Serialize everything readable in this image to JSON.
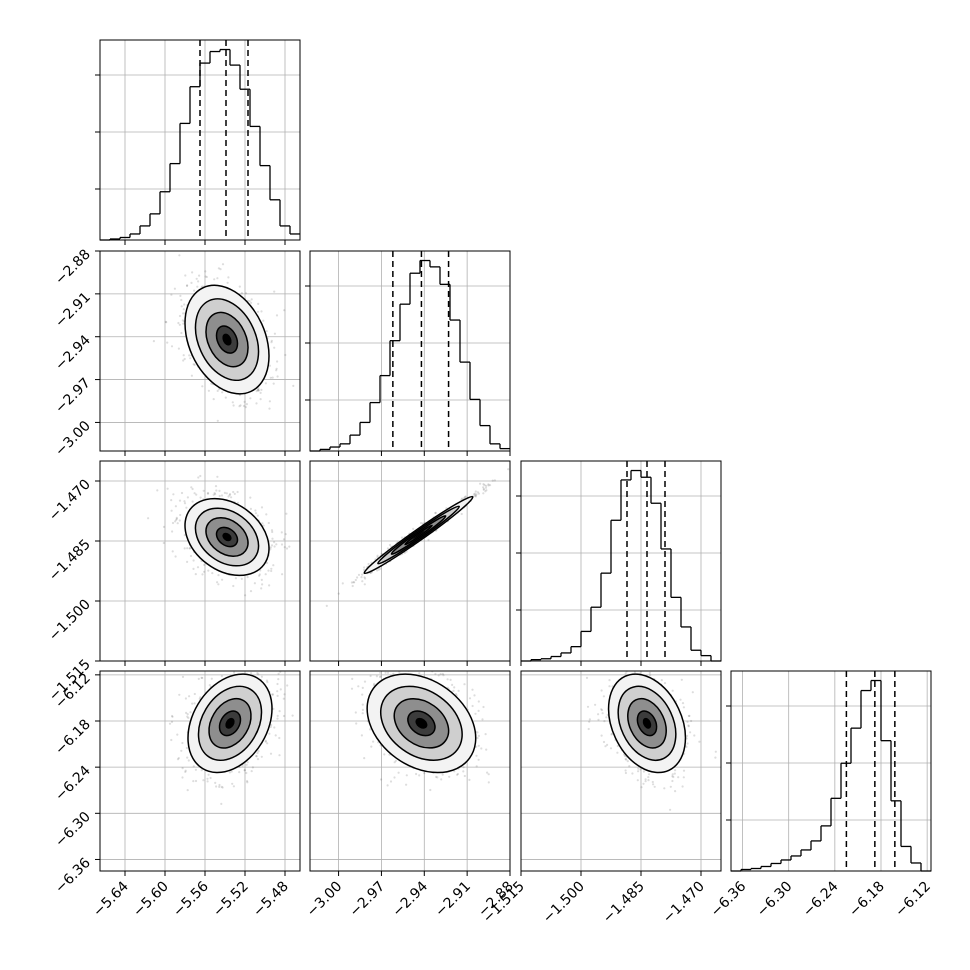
{
  "chart_data": {
    "type": "corner",
    "parameters": [
      {
        "id": "p0",
        "range": [
          -5.665,
          -5.465
        ],
        "ticks": [
          -5.64,
          -5.6,
          -5.56,
          -5.52,
          -5.48
        ],
        "tick_labels": [
          "−5.64",
          "−5.60",
          "−5.56",
          "−5.52",
          "−5.48"
        ],
        "quantiles": [
          -5.565,
          -5.539,
          -5.517
        ],
        "mean": -5.54,
        "sd": 0.021
      },
      {
        "id": "p1",
        "range": [
          -3.02,
          -2.88
        ],
        "ticks": [
          -3.0,
          -2.97,
          -2.94,
          -2.91,
          -2.88
        ],
        "tick_labels": [
          "−3.00",
          "−2.97",
          "−2.94",
          "−2.91",
          "−2.88"
        ],
        "quantiles": [
          -2.962,
          -2.942,
          -2.923
        ],
        "mean": -2.942,
        "sd": 0.019
      },
      {
        "id": "p2",
        "range": [
          -1.515,
          -1.465
        ],
        "ticks": [
          -1.515,
          -1.5,
          -1.485,
          -1.47
        ],
        "tick_labels": [
          "−1.515",
          "−1.500",
          "−1.485",
          "−1.470"
        ],
        "quantiles": [
          -1.4885,
          -1.4835,
          -1.479
        ],
        "mean": -1.4835,
        "sd": 0.0048
      },
      {
        "id": "p3",
        "range": [
          -6.375,
          -6.115
        ],
        "ticks": [
          -6.36,
          -6.3,
          -6.24,
          -6.18,
          -6.12
        ],
        "tick_labels": [
          "−6.36",
          "−6.30",
          "−6.24",
          "−6.18",
          "−6.12"
        ],
        "quantiles": [
          -6.225,
          -6.188,
          -6.162
        ],
        "mean": -6.185,
        "sd": 0.032
      }
    ],
    "histograms": [
      {
        "param": 0,
        "bin_edges": [
          -5.665,
          -5.655,
          -5.645,
          -5.635,
          -5.625,
          -5.615,
          -5.605,
          -5.595,
          -5.585,
          -5.575,
          -5.565,
          -5.555,
          -5.545,
          -5.535,
          -5.525,
          -5.515,
          -5.505,
          -5.495,
          -5.485,
          -5.475,
          -5.465
        ],
        "counts": [
          0,
          2,
          5,
          12,
          28,
          52,
          96,
          152,
          232,
          305,
          352,
          375,
          379,
          348,
          300,
          226,
          148,
          80,
          28,
          12
        ]
      },
      {
        "param": 1,
        "bin_edges": [
          -3.02,
          -3.013,
          -3.006,
          -2.999,
          -2.992,
          -2.985,
          -2.978,
          -2.971,
          -2.964,
          -2.957,
          -2.95,
          -2.943,
          -2.936,
          -2.929,
          -2.922,
          -2.915,
          -2.908,
          -2.901,
          -2.894,
          -2.887,
          -2.88
        ],
        "counts": [
          0,
          4,
          10,
          18,
          40,
          72,
          122,
          190,
          278,
          370,
          448,
          480,
          464,
          420,
          330,
          224,
          130,
          64,
          18,
          6
        ]
      },
      {
        "param": 2,
        "bin_edges": [
          -1.515,
          -1.5125,
          -1.51,
          -1.5075,
          -1.505,
          -1.5025,
          -1.5,
          -1.4975,
          -1.495,
          -1.4925,
          -1.49,
          -1.4875,
          -1.485,
          -1.4825,
          -1.48,
          -1.4775,
          -1.475,
          -1.4725,
          -1.47,
          -1.4675,
          -1.465
        ],
        "counts": [
          0,
          3,
          5,
          10,
          18,
          32,
          66,
          120,
          196,
          314,
          404,
          425,
          410,
          352,
          250,
          142,
          76,
          24,
          12,
          0
        ]
      },
      {
        "param": 3,
        "bin_edges": [
          -6.375,
          -6.362,
          -6.349,
          -6.336,
          -6.323,
          -6.31,
          -6.297,
          -6.284,
          -6.271,
          -6.258,
          -6.245,
          -6.232,
          -6.219,
          -6.206,
          -6.193,
          -6.18,
          -6.167,
          -6.154,
          -6.141,
          -6.128,
          -6.115
        ],
        "counts": [
          0,
          6,
          10,
          18,
          30,
          44,
          60,
          84,
          120,
          180,
          290,
          430,
          570,
          720,
          760,
          520,
          280,
          98,
          32,
          0
        ]
      }
    ],
    "pairs": [
      {
        "x": 0,
        "y": 1,
        "center": [
          -5.538,
          -2.942
        ],
        "sd": [
          0.021,
          0.019
        ],
        "rho": -0.3
      },
      {
        "x": 0,
        "y": 2,
        "center": [
          -5.538,
          -1.484
        ],
        "sd": [
          0.021,
          0.0048
        ],
        "rho": -0.3
      },
      {
        "x": 1,
        "y": 2,
        "center": [
          -2.944,
          -1.4835
        ],
        "sd": [
          0.019,
          0.0048
        ],
        "rho": 0.985
      },
      {
        "x": 0,
        "y": 3,
        "center": [
          -5.535,
          -6.183
        ],
        "sd": [
          0.021,
          0.032
        ],
        "rho": 0.3
      },
      {
        "x": 1,
        "y": 3,
        "center": [
          -2.942,
          -6.183
        ],
        "sd": [
          0.019,
          0.032
        ],
        "rho": -0.3
      },
      {
        "x": 2,
        "y": 3,
        "center": [
          -1.4835,
          -6.183
        ],
        "sd": [
          0.0048,
          0.032
        ],
        "rho": -0.3
      }
    ],
    "contour_levels_sigma": [
      0.5,
      1.0,
      1.5,
      2.0
    ],
    "grid": true
  }
}
